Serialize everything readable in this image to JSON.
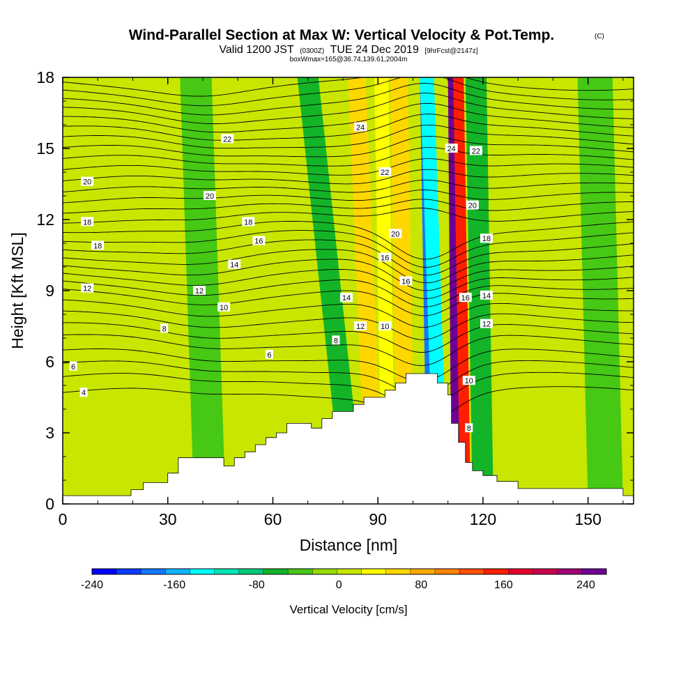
{
  "title": {
    "main": "Wind-Parallel Section at Max W: Vertical Velocity & Pot.Temp.",
    "main_tag": "(C)",
    "sub_a": "Valid 1200 JST",
    "sub_b": "(0300Z)",
    "sub_c": "TUE 24 Dec 2019",
    "sub_d": "[9hrFcst@2147z]",
    "sub_e": "boxWmax=165@36.74,139.61,2004m"
  },
  "chart_data": {
    "type": "heatmap",
    "xlabel": "Distance [nm]",
    "ylabel": "Height [Kft MSL]",
    "xlim": [
      0,
      163
    ],
    "ylim": [
      0,
      18
    ],
    "x_ticks": [
      0,
      30,
      60,
      90,
      120,
      150
    ],
    "y_ticks": [
      0,
      3,
      6,
      9,
      12,
      15,
      18
    ],
    "colorbar": {
      "title": "Vertical Velocity [cm/s]",
      "range": [
        -240,
        260
      ],
      "tick_values": [
        -240,
        -160,
        -80,
        0,
        80,
        160,
        240
      ],
      "tick_labels": [
        "-240",
        "-160",
        "-80",
        "0",
        "80",
        "160",
        "240"
      ],
      "colors": [
        "#0000ff",
        "#0a3cff",
        "#1478ff",
        "#0fb4ff",
        "#00ffff",
        "#00e6b4",
        "#00c878",
        "#14b428",
        "#46c814",
        "#96dc00",
        "#c8e600",
        "#ffff00",
        "#ffd700",
        "#ffaa00",
        "#ff8200",
        "#ff5000",
        "#ff1e00",
        "#e6002d",
        "#c80050",
        "#a00078",
        "#6e0096"
      ]
    },
    "velocity_bands": [
      {
        "x_bottom": 83,
        "x_top": 70,
        "width": 6,
        "value": -70
      },
      {
        "x_bottom": 89,
        "x_top": 84,
        "width": 5,
        "value": 60
      },
      {
        "x_bottom": 93,
        "x_top": 91,
        "width": 4,
        "value": 40
      },
      {
        "x_bottom": 98,
        "x_top": 96,
        "width": 5,
        "value": 55
      },
      {
        "x_bottom": 106,
        "x_top": 104,
        "width": 4,
        "value": -180
      },
      {
        "x_bottom": 108,
        "x_top": 104,
        "width": 4,
        "value": -130
      },
      {
        "x_bottom": 113,
        "x_top": 112,
        "width": 4,
        "value": 240
      },
      {
        "x_bottom": 115,
        "x_top": 113,
        "width": 3,
        "value": 160
      },
      {
        "x_bottom": 120,
        "x_top": 118,
        "width": 6,
        "value": -50
      },
      {
        "x_bottom": 42,
        "x_top": 38,
        "width": 9,
        "value": -35
      },
      {
        "x_bottom": 155,
        "x_top": 152,
        "width": 10,
        "value": -30
      },
      {
        "x_bottom": 8,
        "x_top": 6,
        "width": 14,
        "value": 12
      }
    ],
    "terrain": [
      {
        "x": 0,
        "h": 0.35
      },
      {
        "x": 19.5,
        "h": 0.35
      },
      {
        "x": 19.5,
        "h": 0.6
      },
      {
        "x": 23,
        "h": 0.6
      },
      {
        "x": 23,
        "h": 0.9
      },
      {
        "x": 30,
        "h": 0.9
      },
      {
        "x": 30,
        "h": 1.3
      },
      {
        "x": 33,
        "h": 1.3
      },
      {
        "x": 33,
        "h": 1.95
      },
      {
        "x": 46,
        "h": 1.95
      },
      {
        "x": 46,
        "h": 1.6
      },
      {
        "x": 49,
        "h": 1.6
      },
      {
        "x": 49,
        "h": 1.95
      },
      {
        "x": 52,
        "h": 1.95
      },
      {
        "x": 52,
        "h": 2.2
      },
      {
        "x": 55,
        "h": 2.2
      },
      {
        "x": 55,
        "h": 2.5
      },
      {
        "x": 58,
        "h": 2.5
      },
      {
        "x": 58,
        "h": 2.8
      },
      {
        "x": 61,
        "h": 2.8
      },
      {
        "x": 61,
        "h": 3.0
      },
      {
        "x": 64,
        "h": 3.0
      },
      {
        "x": 64,
        "h": 3.4
      },
      {
        "x": 71,
        "h": 3.4
      },
      {
        "x": 71,
        "h": 3.2
      },
      {
        "x": 74,
        "h": 3.2
      },
      {
        "x": 74,
        "h": 3.6
      },
      {
        "x": 77,
        "h": 3.6
      },
      {
        "x": 77,
        "h": 3.9
      },
      {
        "x": 83,
        "h": 3.9
      },
      {
        "x": 83,
        "h": 4.2
      },
      {
        "x": 86,
        "h": 4.2
      },
      {
        "x": 86,
        "h": 4.5
      },
      {
        "x": 92,
        "h": 4.5
      },
      {
        "x": 92,
        "h": 4.8
      },
      {
        "x": 95,
        "h": 4.8
      },
      {
        "x": 95,
        "h": 5.1
      },
      {
        "x": 98,
        "h": 5.1
      },
      {
        "x": 98,
        "h": 5.5
      },
      {
        "x": 107,
        "h": 5.5
      },
      {
        "x": 107,
        "h": 5.1
      },
      {
        "x": 110,
        "h": 5.1
      },
      {
        "x": 110,
        "h": 4.6
      },
      {
        "x": 111,
        "h": 4.6
      },
      {
        "x": 111,
        "h": 3.4
      },
      {
        "x": 113,
        "h": 3.4
      },
      {
        "x": 113,
        "h": 2.6
      },
      {
        "x": 115,
        "h": 2.6
      },
      {
        "x": 115,
        "h": 1.75
      },
      {
        "x": 117,
        "h": 1.75
      },
      {
        "x": 117,
        "h": 1.4
      },
      {
        "x": 120,
        "h": 1.4
      },
      {
        "x": 120,
        "h": 1.2
      },
      {
        "x": 124,
        "h": 1.2
      },
      {
        "x": 124,
        "h": 0.95
      },
      {
        "x": 130,
        "h": 0.95
      },
      {
        "x": 130,
        "h": 0.65
      },
      {
        "x": 160,
        "h": 0.65
      },
      {
        "x": 160,
        "h": 0.35
      },
      {
        "x": 163,
        "h": 0.35
      }
    ],
    "theta_contour_heights": [
      4.7,
      5.3,
      5.8,
      6.3,
      6.9,
      7.4,
      7.9,
      8.4,
      8.9,
      9.3,
      9.7,
      10.1,
      10.5,
      10.9,
      11.3,
      11.7,
      12.1,
      12.5,
      12.9,
      13.3,
      13.7,
      14.1,
      14.5,
      14.9,
      15.3,
      15.7,
      16.1,
      16.5,
      16.9,
      17.3,
      17.7
    ],
    "contour_labels": [
      {
        "text": "22",
        "x": 47,
        "y": 15.4
      },
      {
        "text": "24",
        "x": 85,
        "y": 15.9
      },
      {
        "text": "24",
        "x": 111,
        "y": 15.0
      },
      {
        "text": "22",
        "x": 118,
        "y": 14.9
      },
      {
        "text": "22",
        "x": 92,
        "y": 14.0
      },
      {
        "text": "20",
        "x": 7,
        "y": 13.6
      },
      {
        "text": "20",
        "x": 42,
        "y": 13.0
      },
      {
        "text": "20",
        "x": 117,
        "y": 12.6
      },
      {
        "text": "18",
        "x": 7,
        "y": 11.9
      },
      {
        "text": "18",
        "x": 53,
        "y": 11.9
      },
      {
        "text": "18",
        "x": 10,
        "y": 10.9
      },
      {
        "text": "16",
        "x": 56,
        "y": 11.1
      },
      {
        "text": "20",
        "x": 95,
        "y": 11.4
      },
      {
        "text": "18",
        "x": 121,
        "y": 11.2
      },
      {
        "text": "16",
        "x": 92,
        "y": 10.4
      },
      {
        "text": "14",
        "x": 49,
        "y": 10.1
      },
      {
        "text": "16",
        "x": 98,
        "y": 9.4
      },
      {
        "text": "12",
        "x": 7,
        "y": 9.1
      },
      {
        "text": "12",
        "x": 39,
        "y": 9.0
      },
      {
        "text": "14",
        "x": 81,
        "y": 8.7
      },
      {
        "text": "16",
        "x": 115,
        "y": 8.7
      },
      {
        "text": "14",
        "x": 121,
        "y": 8.8
      },
      {
        "text": "10",
        "x": 46,
        "y": 8.3
      },
      {
        "text": "12",
        "x": 85,
        "y": 7.5
      },
      {
        "text": "10",
        "x": 92,
        "y": 7.5
      },
      {
        "text": "12",
        "x": 121,
        "y": 7.6
      },
      {
        "text": "8",
        "x": 29,
        "y": 7.4
      },
      {
        "text": "8",
        "x": 78,
        "y": 6.9
      },
      {
        "text": "6",
        "x": 59,
        "y": 6.3
      },
      {
        "text": "6",
        "x": 3,
        "y": 5.8
      },
      {
        "text": "10",
        "x": 116,
        "y": 5.2
      },
      {
        "text": "4",
        "x": 6,
        "y": 4.7
      },
      {
        "text": "8",
        "x": 116,
        "y": 3.2
      }
    ]
  }
}
